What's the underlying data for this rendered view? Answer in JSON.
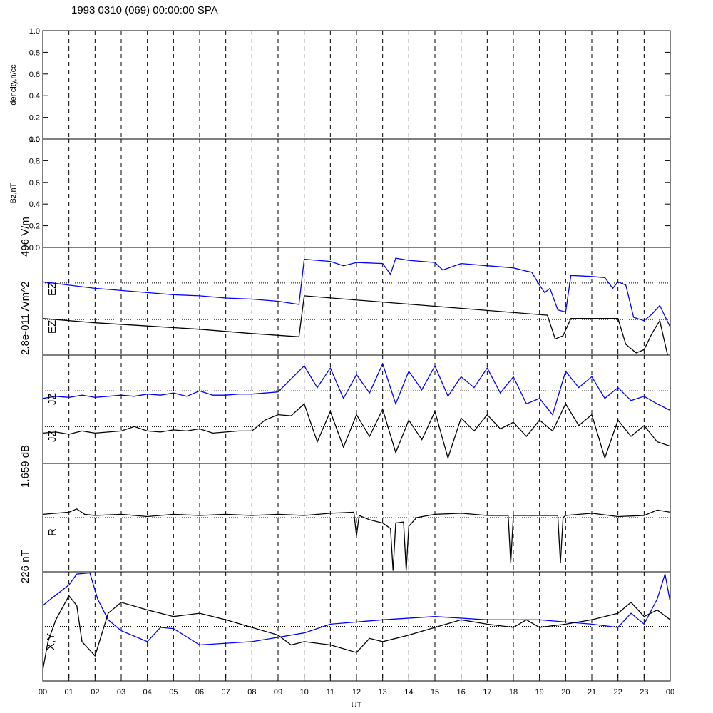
{
  "chart_data": [
    {
      "type": "line",
      "title": "1993 0310 (069) 00:00:00 SPA",
      "ylabel": "dencity,n/cc",
      "xlim": [
        0,
        24
      ],
      "ylim": [
        0,
        1
      ],
      "yticks": [
        {
          "value": 0,
          "label": "0.0"
        },
        {
          "value": 0.2,
          "label": "0.2"
        },
        {
          "value": 0.4,
          "label": "0.4"
        },
        {
          "value": 0.6,
          "label": "0.6"
        },
        {
          "value": 0.8,
          "label": "0.8"
        },
        {
          "value": 1,
          "label": "1.0"
        }
      ],
      "series": []
    },
    {
      "type": "line",
      "ylabel": "Bz,nT",
      "xlim": [
        0,
        24
      ],
      "ylim": [
        0,
        1
      ],
      "yticks": [
        {
          "value": 0,
          "label": "0.0"
        },
        {
          "value": 0.2,
          "label": "0.2"
        },
        {
          "value": 0.4,
          "label": "0.4"
        },
        {
          "value": 0.6,
          "label": "0.6"
        },
        {
          "value": 0.8,
          "label": "0.8"
        },
        {
          "value": 1,
          "label": "1.0"
        }
      ],
      "series": []
    },
    {
      "type": "line",
      "ylabel": "496 V/m",
      "xlim": [
        0,
        24
      ],
      "ref": [
        0.33,
        0.67
      ],
      "series": [
        {
          "name": "EZ",
          "color": "#0000ff",
          "x": [
            0,
            1,
            2,
            3,
            4,
            5,
            6,
            7,
            8,
            9,
            9.8,
            10,
            10.5,
            11,
            11.5,
            12,
            13,
            13.3,
            13.5,
            14,
            15,
            15.3,
            16,
            17,
            18,
            18.5,
            18.7,
            19,
            19.2,
            19.4,
            19.7,
            20,
            20.2,
            21,
            21.5,
            21.8,
            22,
            22.3,
            22.6,
            23,
            23.3,
            23.6,
            24
          ],
          "values": [
            0.68,
            0.65,
            0.62,
            0.6,
            0.58,
            0.56,
            0.55,
            0.53,
            0.52,
            0.5,
            0.47,
            0.89,
            0.88,
            0.87,
            0.83,
            0.86,
            0.85,
            0.75,
            0.9,
            0.88,
            0.86,
            0.79,
            0.85,
            0.83,
            0.81,
            0.78,
            0.77,
            0.65,
            0.58,
            0.62,
            0.42,
            0.4,
            0.74,
            0.73,
            0.72,
            0.62,
            0.68,
            0.65,
            0.35,
            0.32,
            0.38,
            0.46,
            0.26
          ]
        },
        {
          "name": "EZ",
          "color": "#000000",
          "x": [
            0,
            2,
            4,
            6,
            8,
            9.8,
            10,
            19.3,
            19.6,
            19.9,
            20.2,
            22,
            22.3,
            22.7,
            23,
            23.3,
            23.6,
            23.9
          ],
          "values": [
            0.34,
            0.3,
            0.27,
            0.24,
            0.2,
            0.17,
            0.55,
            0.37,
            0.15,
            0.18,
            0.34,
            0.34,
            0.1,
            0.02,
            0.05,
            0.2,
            0.32,
            0
          ]
        }
      ]
    },
    {
      "type": "line",
      "ylabel": "2.8e-011 A/m^2",
      "xlim": [
        0,
        24
      ],
      "ref": [
        0.34,
        0.67
      ],
      "series": [
        {
          "name": "JZ",
          "color": "#0000ff",
          "x": [
            0,
            0.5,
            1,
            1.5,
            2,
            2.5,
            3,
            3.5,
            4,
            4.5,
            5,
            5.5,
            6,
            6.5,
            7,
            7.5,
            8,
            8.5,
            9,
            9.5,
            10,
            10.5,
            11,
            11.5,
            12,
            12.5,
            13,
            13.5,
            14,
            14.5,
            15,
            15.5,
            16,
            16.5,
            17,
            17.5,
            18,
            18.5,
            19,
            19.5,
            20,
            20.5,
            21,
            21.5,
            22,
            22.5,
            23,
            23.5,
            24
          ],
          "values": [
            0.6,
            0.62,
            0.61,
            0.63,
            0.61,
            0.62,
            0.63,
            0.62,
            0.64,
            0.63,
            0.65,
            0.62,
            0.67,
            0.63,
            0.63,
            0.64,
            0.64,
            0.65,
            0.66,
            0.78,
            0.9,
            0.7,
            0.88,
            0.6,
            0.82,
            0.65,
            0.92,
            0.55,
            0.85,
            0.68,
            0.9,
            0.62,
            0.8,
            0.7,
            0.88,
            0.65,
            0.8,
            0.55,
            0.6,
            0.45,
            0.85,
            0.7,
            0.8,
            0.6,
            0.7,
            0.58,
            0.62,
            0.55,
            0.49
          ]
        },
        {
          "name": "JZ",
          "color": "#000000",
          "x": [
            0,
            0.5,
            1,
            1.5,
            2,
            2.5,
            3,
            3.5,
            4,
            4.5,
            5,
            5.5,
            6,
            6.5,
            7,
            7.5,
            8,
            8.5,
            9,
            9.5,
            10,
            10.5,
            11,
            11.5,
            12,
            12.5,
            13,
            13.5,
            14,
            14.5,
            15,
            15.5,
            16,
            16.5,
            17,
            17.5,
            18,
            18.5,
            19,
            19.5,
            20,
            20.5,
            21,
            21.5,
            22,
            22.5,
            23,
            23.5,
            24
          ],
          "values": [
            0.28,
            0.29,
            0.27,
            0.3,
            0.28,
            0.29,
            0.3,
            0.34,
            0.3,
            0.29,
            0.31,
            0.3,
            0.32,
            0.28,
            0.29,
            0.3,
            0.3,
            0.4,
            0.45,
            0.44,
            0.55,
            0.2,
            0.48,
            0.15,
            0.45,
            0.25,
            0.5,
            0.1,
            0.4,
            0.22,
            0.48,
            0.05,
            0.42,
            0.3,
            0.45,
            0.32,
            0.38,
            0.25,
            0.4,
            0.3,
            0.55,
            0.35,
            0.45,
            0.05,
            0.4,
            0.25,
            0.35,
            0.2,
            0.16
          ]
        }
      ]
    },
    {
      "type": "line",
      "ylabel": "1.659 dB",
      "xlim": [
        0,
        24
      ],
      "ref": [
        0.5
      ],
      "series": [
        {
          "name": "R",
          "color": "#000000",
          "x": [
            0,
            1,
            1.3,
            1.6,
            2,
            3,
            4,
            5,
            6,
            7,
            8,
            9,
            10,
            11,
            11.9,
            12,
            12.1,
            12.5,
            13,
            13.3,
            13.4,
            13.5,
            13.8,
            13.9,
            14,
            14.3,
            15,
            16,
            17,
            17.8,
            17.9,
            18,
            19,
            19.7,
            19.8,
            19.9,
            20,
            21,
            22,
            23,
            23.5,
            24
          ],
          "values": [
            0.53,
            0.55,
            0.58,
            0.53,
            0.52,
            0.53,
            0.51,
            0.53,
            0.52,
            0.53,
            0.52,
            0.53,
            0.52,
            0.54,
            0.55,
            0.33,
            0.52,
            0.48,
            0.45,
            0.4,
            0.01,
            0.45,
            0.46,
            0.01,
            0.42,
            0.5,
            0.53,
            0.54,
            0.52,
            0.52,
            0.08,
            0.52,
            0.52,
            0.52,
            0.08,
            0.5,
            0.52,
            0.54,
            0.51,
            0.52,
            0.57,
            0.55
          ]
        }
      ]
    },
    {
      "type": "line",
      "ylabel": "226 nT",
      "series_label": "X,Y",
      "xlabel": "UT",
      "xlim": [
        0,
        24
      ],
      "ref": [
        0.5
      ],
      "xticks": [
        {
          "value": 0,
          "label": "00"
        },
        {
          "value": 1,
          "label": "01"
        },
        {
          "value": 2,
          "label": "02"
        },
        {
          "value": 3,
          "label": "03"
        },
        {
          "value": 4,
          "label": "04"
        },
        {
          "value": 5,
          "label": "05"
        },
        {
          "value": 6,
          "label": "06"
        },
        {
          "value": 7,
          "label": "07"
        },
        {
          "value": 8,
          "label": "08"
        },
        {
          "value": 9,
          "label": "09"
        },
        {
          "value": 10,
          "label": "10"
        },
        {
          "value": 11,
          "label": "11"
        },
        {
          "value": 12,
          "label": "12"
        },
        {
          "value": 13,
          "label": "13"
        },
        {
          "value": 14,
          "label": "14"
        },
        {
          "value": 15,
          "label": "15"
        },
        {
          "value": 16,
          "label": "16"
        },
        {
          "value": 17,
          "label": "17"
        },
        {
          "value": 18,
          "label": "18"
        },
        {
          "value": 19,
          "label": "19"
        },
        {
          "value": 20,
          "label": "20"
        },
        {
          "value": 21,
          "label": "21"
        },
        {
          "value": 22,
          "label": "22"
        },
        {
          "value": 23,
          "label": "23"
        },
        {
          "value": 24,
          "label": "00"
        }
      ],
      "series": [
        {
          "color": "#0000ff",
          "x": [
            0,
            0.3,
            1,
            1.3,
            1.8,
            2.1,
            2.5,
            3,
            4,
            4.5,
            5,
            6,
            8,
            10,
            11,
            13,
            15,
            17,
            19,
            21,
            22,
            22.5,
            23,
            23.5,
            23.8,
            24
          ],
          "values": [
            0.69,
            0.75,
            0.88,
            0.98,
            0.99,
            0.75,
            0.56,
            0.46,
            0.36,
            0.49,
            0.48,
            0.33,
            0.36,
            0.44,
            0.52,
            0.56,
            0.59,
            0.56,
            0.56,
            0.52,
            0.49,
            0.62,
            0.52,
            0.75,
            0.98,
            0.72
          ]
        },
        {
          "color": "#000000",
          "x": [
            0,
            0.2,
            0.5,
            1,
            1.3,
            1.5,
            2,
            2.5,
            3,
            4,
            5,
            6,
            7,
            8,
            9,
            9.5,
            10,
            11,
            12,
            12.5,
            13,
            14,
            15,
            16,
            17,
            18,
            18.5,
            19,
            20,
            21,
            22,
            22.5,
            23,
            23.5,
            24
          ],
          "values": [
            0.1,
            0.36,
            0.56,
            0.78,
            0.69,
            0.36,
            0.23,
            0.62,
            0.72,
            0.65,
            0.59,
            0.62,
            0.56,
            0.49,
            0.42,
            0.33,
            0.36,
            0.33,
            0.26,
            0.39,
            0.36,
            0.42,
            0.49,
            0.56,
            0.52,
            0.49,
            0.56,
            0.49,
            0.52,
            0.56,
            0.62,
            0.72,
            0.59,
            0.65,
            0.56
          ]
        }
      ]
    }
  ]
}
